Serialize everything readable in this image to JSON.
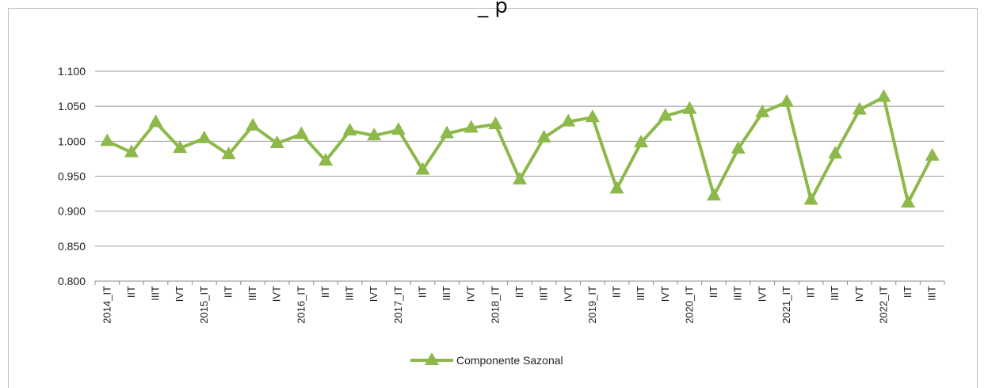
{
  "chart_data": {
    "type": "line",
    "title": "_    p",
    "ylim": [
      0.8,
      1.1
    ],
    "yticks": [
      "1.100",
      "1.050",
      "1.000",
      "0.950",
      "0.900",
      "0.850",
      "0.800"
    ],
    "ytick_values": [
      1.1,
      1.05,
      1.0,
      0.95,
      0.9,
      0.85,
      0.8
    ],
    "grid": true,
    "legend_position": "bottom",
    "categories": [
      "2014_IT",
      "IIT",
      "IIIT",
      "IVT",
      "2015_IT",
      "IIT",
      "IIIT",
      "IVT",
      "2016_IT",
      "IIT",
      "IIIT",
      "IVT",
      "2017_IT",
      "IIT",
      "IIIT",
      "IVT",
      "2018_IT",
      "IIT",
      "IIIT",
      "IVT",
      "2019_IT",
      "IIT",
      "IIIT",
      "IVT",
      "2020_IT",
      "IIT",
      "IIIT",
      "IVT",
      "2021_IT",
      "IIT",
      "IIIT",
      "IVT",
      "2022_IT",
      "IIT",
      "IIIT"
    ],
    "series": [
      {
        "name": "Componente Sazonal",
        "color": "#8db84a",
        "marker": "triangle",
        "values": [
          1.0,
          0.984,
          1.027,
          0.99,
          1.004,
          0.981,
          1.022,
          0.997,
          1.01,
          0.972,
          1.015,
          1.008,
          1.016,
          0.959,
          1.011,
          1.019,
          1.024,
          0.945,
          1.005,
          1.028,
          1.034,
          0.932,
          0.998,
          1.036,
          1.046,
          0.922,
          0.989,
          1.041,
          1.056,
          0.916,
          0.982,
          1.045,
          1.063,
          0.912,
          0.979
        ]
      }
    ]
  }
}
